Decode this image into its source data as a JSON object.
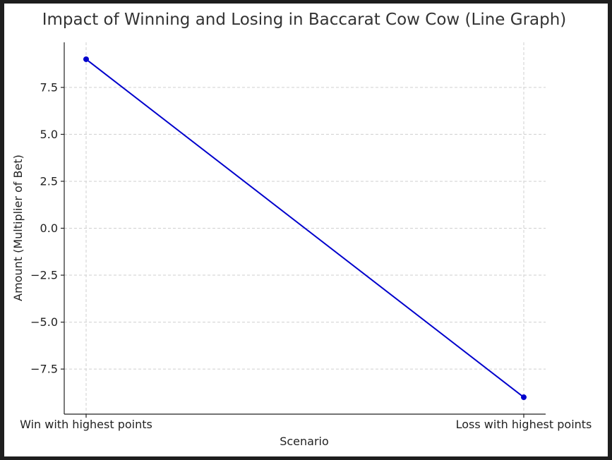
{
  "chart_data": {
    "type": "line",
    "title": "Impact of Winning and Losing in Baccarat Cow Cow (Line Graph)",
    "xlabel": "Scenario",
    "ylabel": "Amount (Multiplier of Bet)",
    "categories": [
      "Win with highest points",
      "Loss with highest points"
    ],
    "series": [
      {
        "values": [
          9,
          -9
        ],
        "color": "#0000cc"
      }
    ],
    "yticks": [
      -7.5,
      -5.0,
      -2.5,
      0.0,
      2.5,
      5.0,
      7.5
    ],
    "ytick_labels": [
      "−7.5",
      "−5.0",
      "−2.5",
      "0.0",
      "2.5",
      "5.0",
      "7.5"
    ],
    "ylim": [
      -9.9,
      9.9
    ],
    "grid": true,
    "markers": true
  }
}
